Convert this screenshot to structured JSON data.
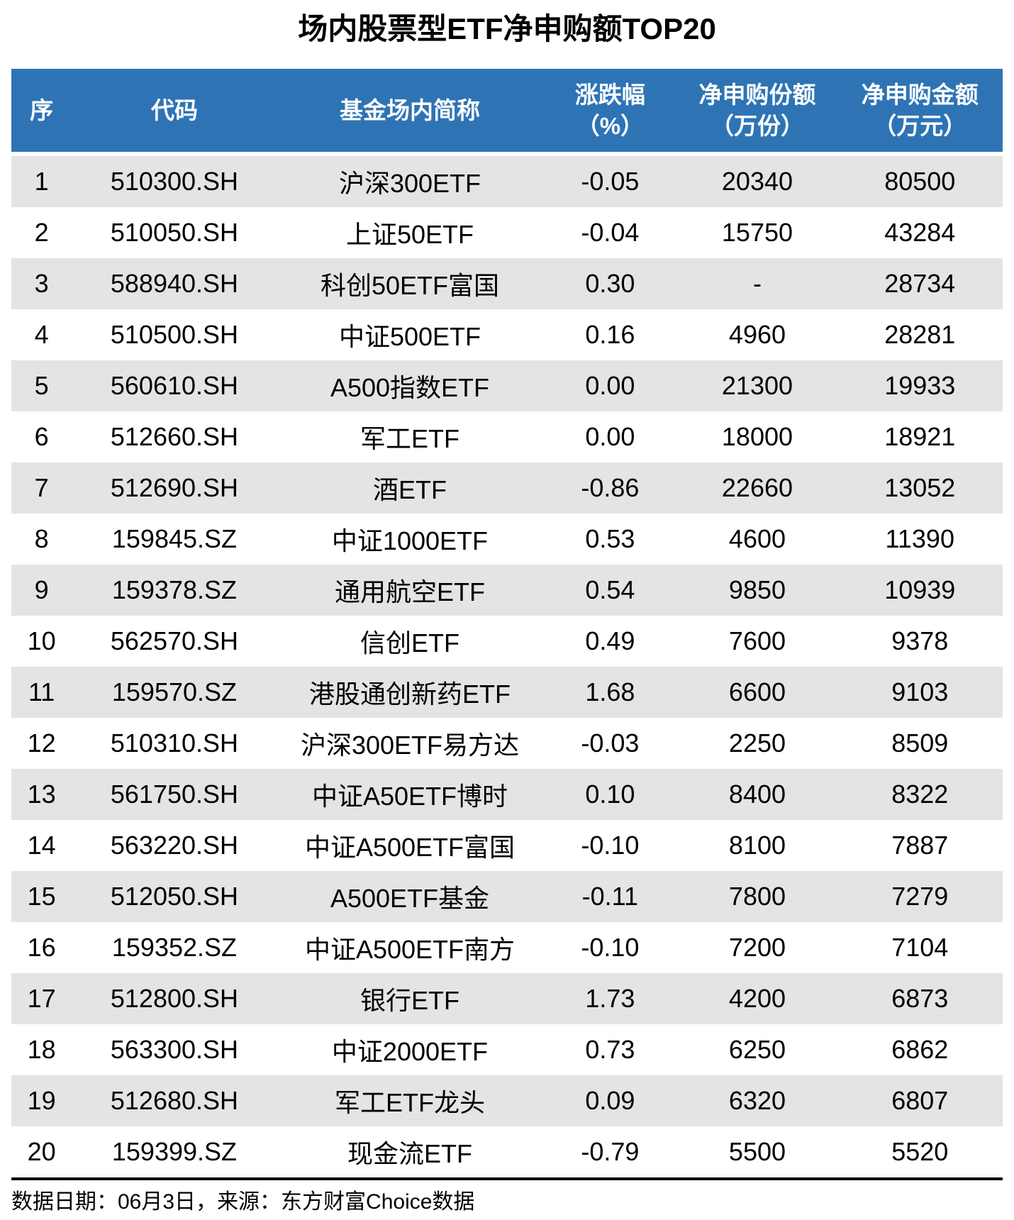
{
  "title": "场内股票型ETF净申购额TOP20",
  "colors": {
    "header_bg": "#2E74B5",
    "header_text": "#FFFFFF",
    "stripe_bg": "#E4E4E4",
    "body_text": "#000000",
    "divider": "#000000"
  },
  "header": {
    "columns": [
      {
        "line1": "序",
        "line2": ""
      },
      {
        "line1": "代码",
        "line2": ""
      },
      {
        "line1": "基金场内简称",
        "line2": ""
      },
      {
        "line1": "涨跌幅",
        "line2": "（%）"
      },
      {
        "line1": "净申购份额",
        "line2": "（万份）"
      },
      {
        "line1": "净申购金额",
        "line2": "（万元）"
      }
    ]
  },
  "chart_data": {
    "type": "table",
    "title": "场内股票型ETF净申购额TOP20",
    "columns": [
      "序",
      "代码",
      "基金场内简称",
      "涨跌幅（%）",
      "净申购份额（万份）",
      "净申购金额（万元）"
    ],
    "rows": [
      [
        "1",
        "510300.SH",
        "沪深300ETF",
        "-0.05",
        "20340",
        "80500"
      ],
      [
        "2",
        "510050.SH",
        "上证50ETF",
        "-0.04",
        "15750",
        "43284"
      ],
      [
        "3",
        "588940.SH",
        "科创50ETF富国",
        "0.30",
        "-",
        "28734"
      ],
      [
        "4",
        "510500.SH",
        "中证500ETF",
        "0.16",
        "4960",
        "28281"
      ],
      [
        "5",
        "560610.SH",
        "A500指数ETF",
        "0.00",
        "21300",
        "19933"
      ],
      [
        "6",
        "512660.SH",
        "军工ETF",
        "0.00",
        "18000",
        "18921"
      ],
      [
        "7",
        "512690.SH",
        "酒ETF",
        "-0.86",
        "22660",
        "13052"
      ],
      [
        "8",
        "159845.SZ",
        "中证1000ETF",
        "0.53",
        "4600",
        "11390"
      ],
      [
        "9",
        "159378.SZ",
        "通用航空ETF",
        "0.54",
        "9850",
        "10939"
      ],
      [
        "10",
        "562570.SH",
        "信创ETF",
        "0.49",
        "7600",
        "9378"
      ],
      [
        "11",
        "159570.SZ",
        "港股通创新药ETF",
        "1.68",
        "6600",
        "9103"
      ],
      [
        "12",
        "510310.SH",
        "沪深300ETF易方达",
        "-0.03",
        "2250",
        "8509"
      ],
      [
        "13",
        "561750.SH",
        "中证A50ETF博时",
        "0.10",
        "8400",
        "8322"
      ],
      [
        "14",
        "563220.SH",
        "中证A500ETF富国",
        "-0.10",
        "8100",
        "7887"
      ],
      [
        "15",
        "512050.SH",
        "A500ETF基金",
        "-0.11",
        "7800",
        "7279"
      ],
      [
        "16",
        "159352.SZ",
        "中证A500ETF南方",
        "-0.10",
        "7200",
        "7104"
      ],
      [
        "17",
        "512800.SH",
        "银行ETF",
        "1.73",
        "4200",
        "6873"
      ],
      [
        "18",
        "563300.SH",
        "中证2000ETF",
        "0.73",
        "6250",
        "6862"
      ],
      [
        "19",
        "512680.SH",
        "军工ETF龙头",
        "0.09",
        "6320",
        "6807"
      ],
      [
        "20",
        "159399.SZ",
        "现金流ETF",
        "-0.79",
        "5500",
        "5520"
      ]
    ]
  },
  "footer": {
    "text": "数据日期：06月3日，来源：东方财富Choice数据"
  }
}
